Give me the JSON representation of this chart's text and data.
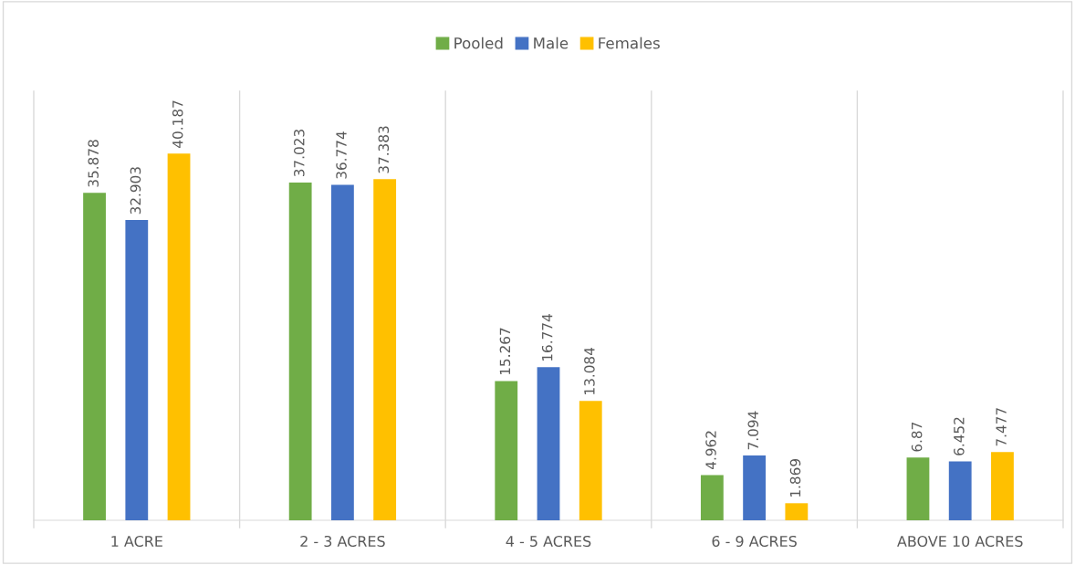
{
  "chart_data": {
    "type": "bar",
    "categories": [
      "1 ACRE",
      "2 - 3 ACRES",
      "4 - 5 ACRES",
      "6 - 9 ACRES",
      "ABOVE 10 ACRES"
    ],
    "series": [
      {
        "name": "Pooled",
        "color": "#70ad47",
        "values": [
          35.878,
          37.023,
          15.267,
          4.962,
          6.87
        ]
      },
      {
        "name": "Male",
        "color": "#4472c4",
        "values": [
          32.903,
          36.774,
          16.774,
          7.094,
          6.452
        ]
      },
      {
        "name": "Females",
        "color": "#ffc000",
        "values": [
          40.187,
          37.383,
          13.084,
          1.869,
          7.477
        ]
      }
    ],
    "data_labels": true,
    "grid": "x",
    "legend": "top"
  }
}
